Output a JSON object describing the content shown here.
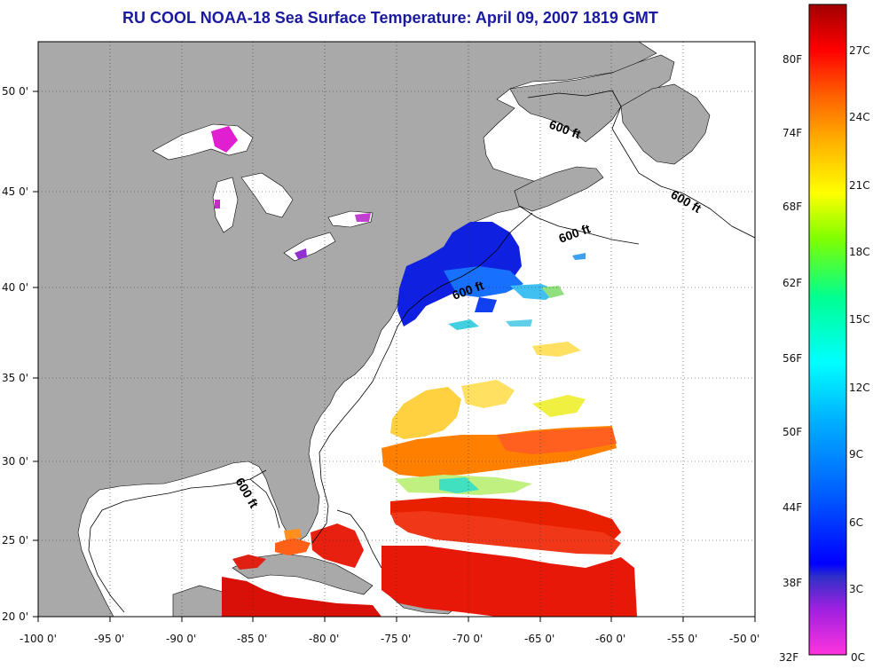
{
  "title": "RU COOL  NOAA-18  Sea Surface Temperature:  April 09, 2007 1819 GMT",
  "map": {
    "lon_labels": [
      "-100 0'",
      "-95 0'",
      "-90 0'",
      "-85 0'",
      "-80 0'",
      "-75 0'",
      "-70 0'",
      "-65 0'",
      "-60 0'",
      "-55 0'",
      "-50 0'"
    ],
    "lat_labels": [
      "50 0'",
      "45 0'",
      "40 0'",
      "35 0'",
      "30 0'",
      "25 0'",
      "20 0'"
    ],
    "contour_label": "600 ft",
    "land_color": "#a9a9a9",
    "ocean_color": "#ffffff"
  },
  "colorbar": {
    "fahrenheit_labels": [
      "80F",
      "74F",
      "68F",
      "62F",
      "56F",
      "50F",
      "44F",
      "38F",
      "32F"
    ],
    "celsius_labels": [
      "27C",
      "24C",
      "21C",
      "18C",
      "15C",
      "12C",
      "9C",
      "6C",
      "3C",
      "0C"
    ]
  }
}
